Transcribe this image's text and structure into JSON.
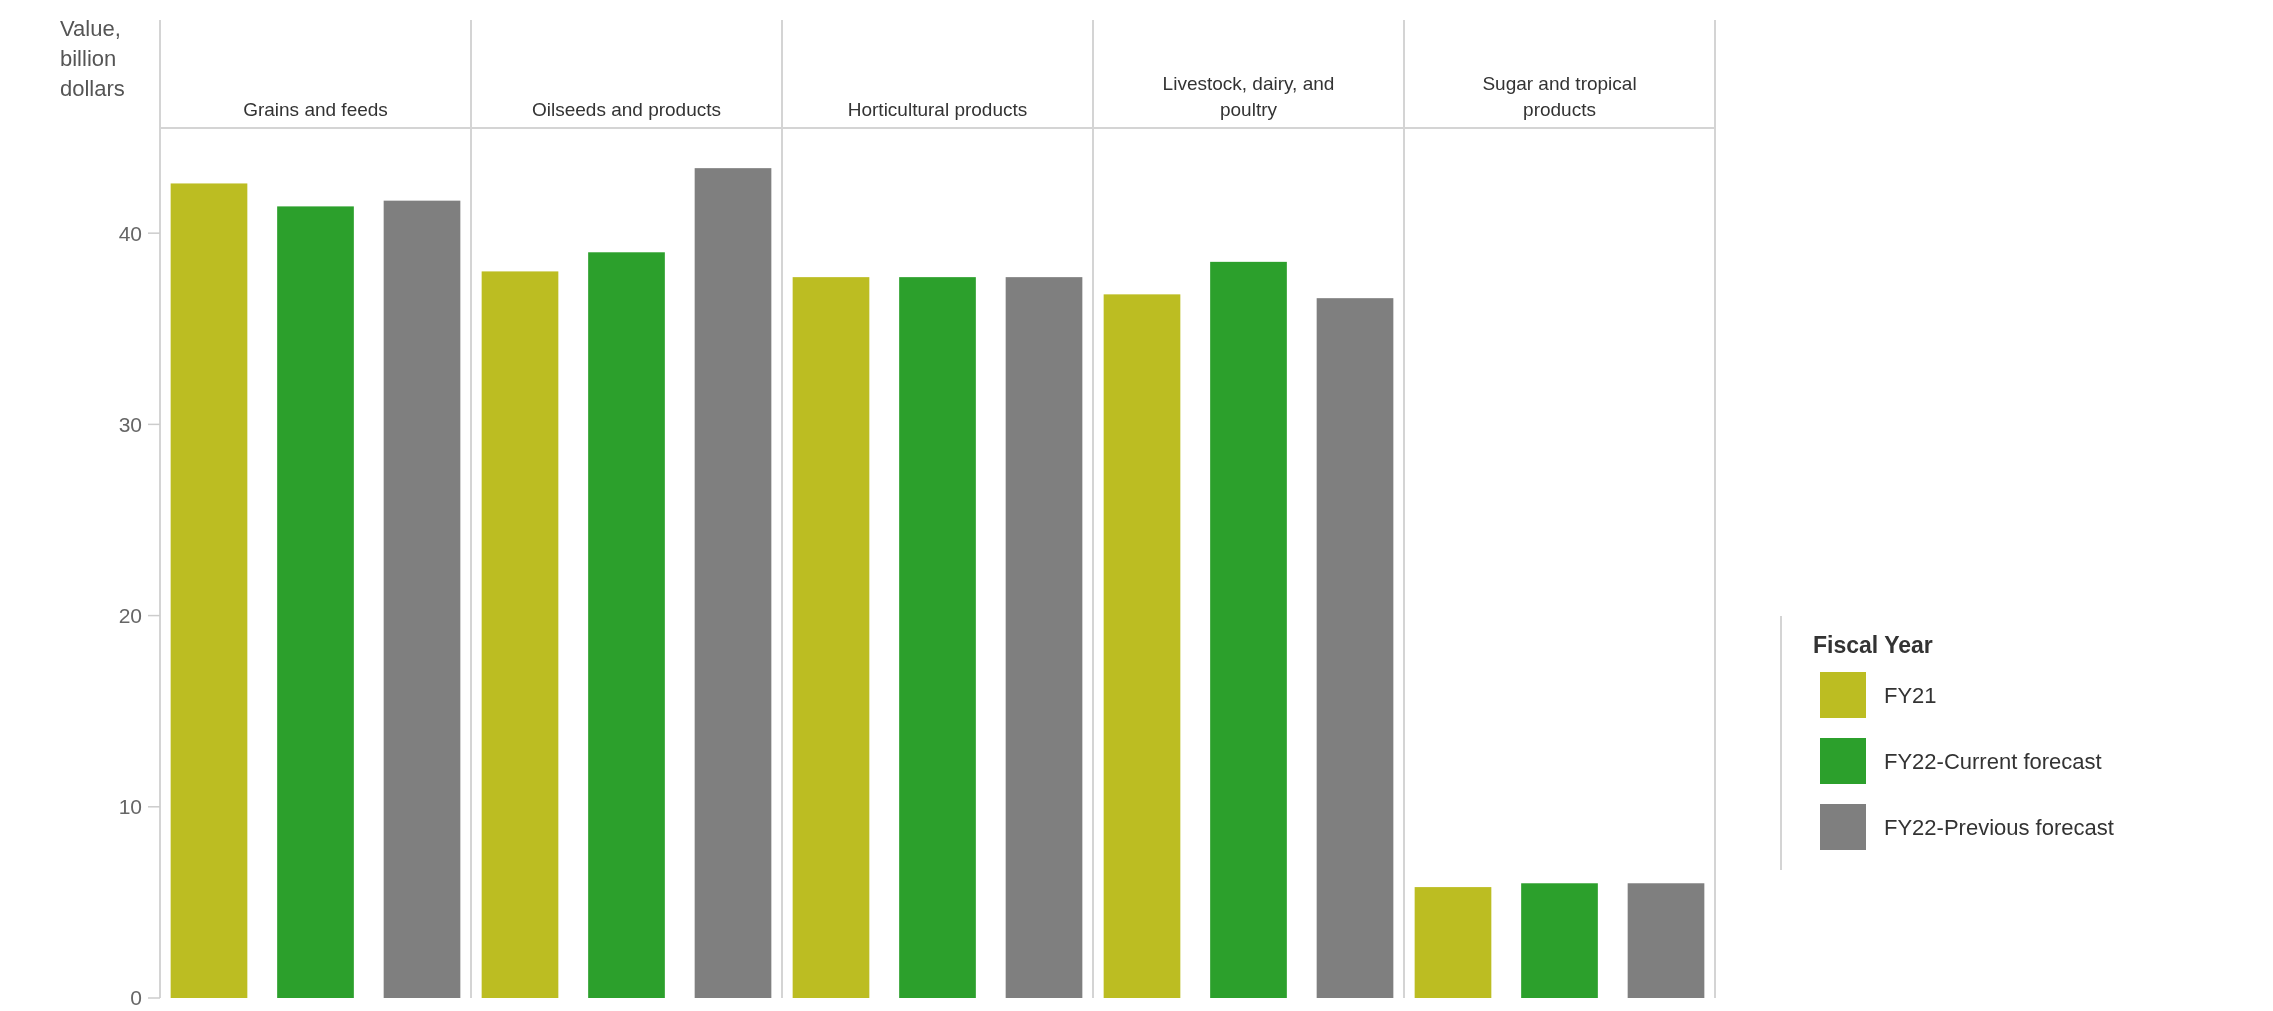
{
  "chart_data": {
    "type": "bar",
    "ylabel": "Value, billion dollars",
    "legend_title": "Fiscal Year",
    "legend": "right",
    "grid": false,
    "categories": [
      "Grains and feeds",
      "Oilseeds and products",
      "Horticultural products",
      "Livestock, dairy, and poultry",
      "Sugar and tropical products"
    ],
    "series": [
      {
        "name": "FY21",
        "color": "#bcbd22",
        "values": [
          42.6,
          38.0,
          37.7,
          36.8,
          5.8
        ]
      },
      {
        "name": "FY22-Current forecast",
        "color": "#2ca02c",
        "values": [
          41.4,
          39.0,
          37.7,
          38.5,
          6.0
        ]
      },
      {
        "name": "FY22-Previous forecast",
        "color": "#7f7f7f",
        "values": [
          41.7,
          43.4,
          37.7,
          36.6,
          6.0
        ]
      }
    ],
    "ylim": [
      0,
      45.5
    ],
    "yticks": [
      0,
      10,
      20,
      30,
      40
    ]
  }
}
